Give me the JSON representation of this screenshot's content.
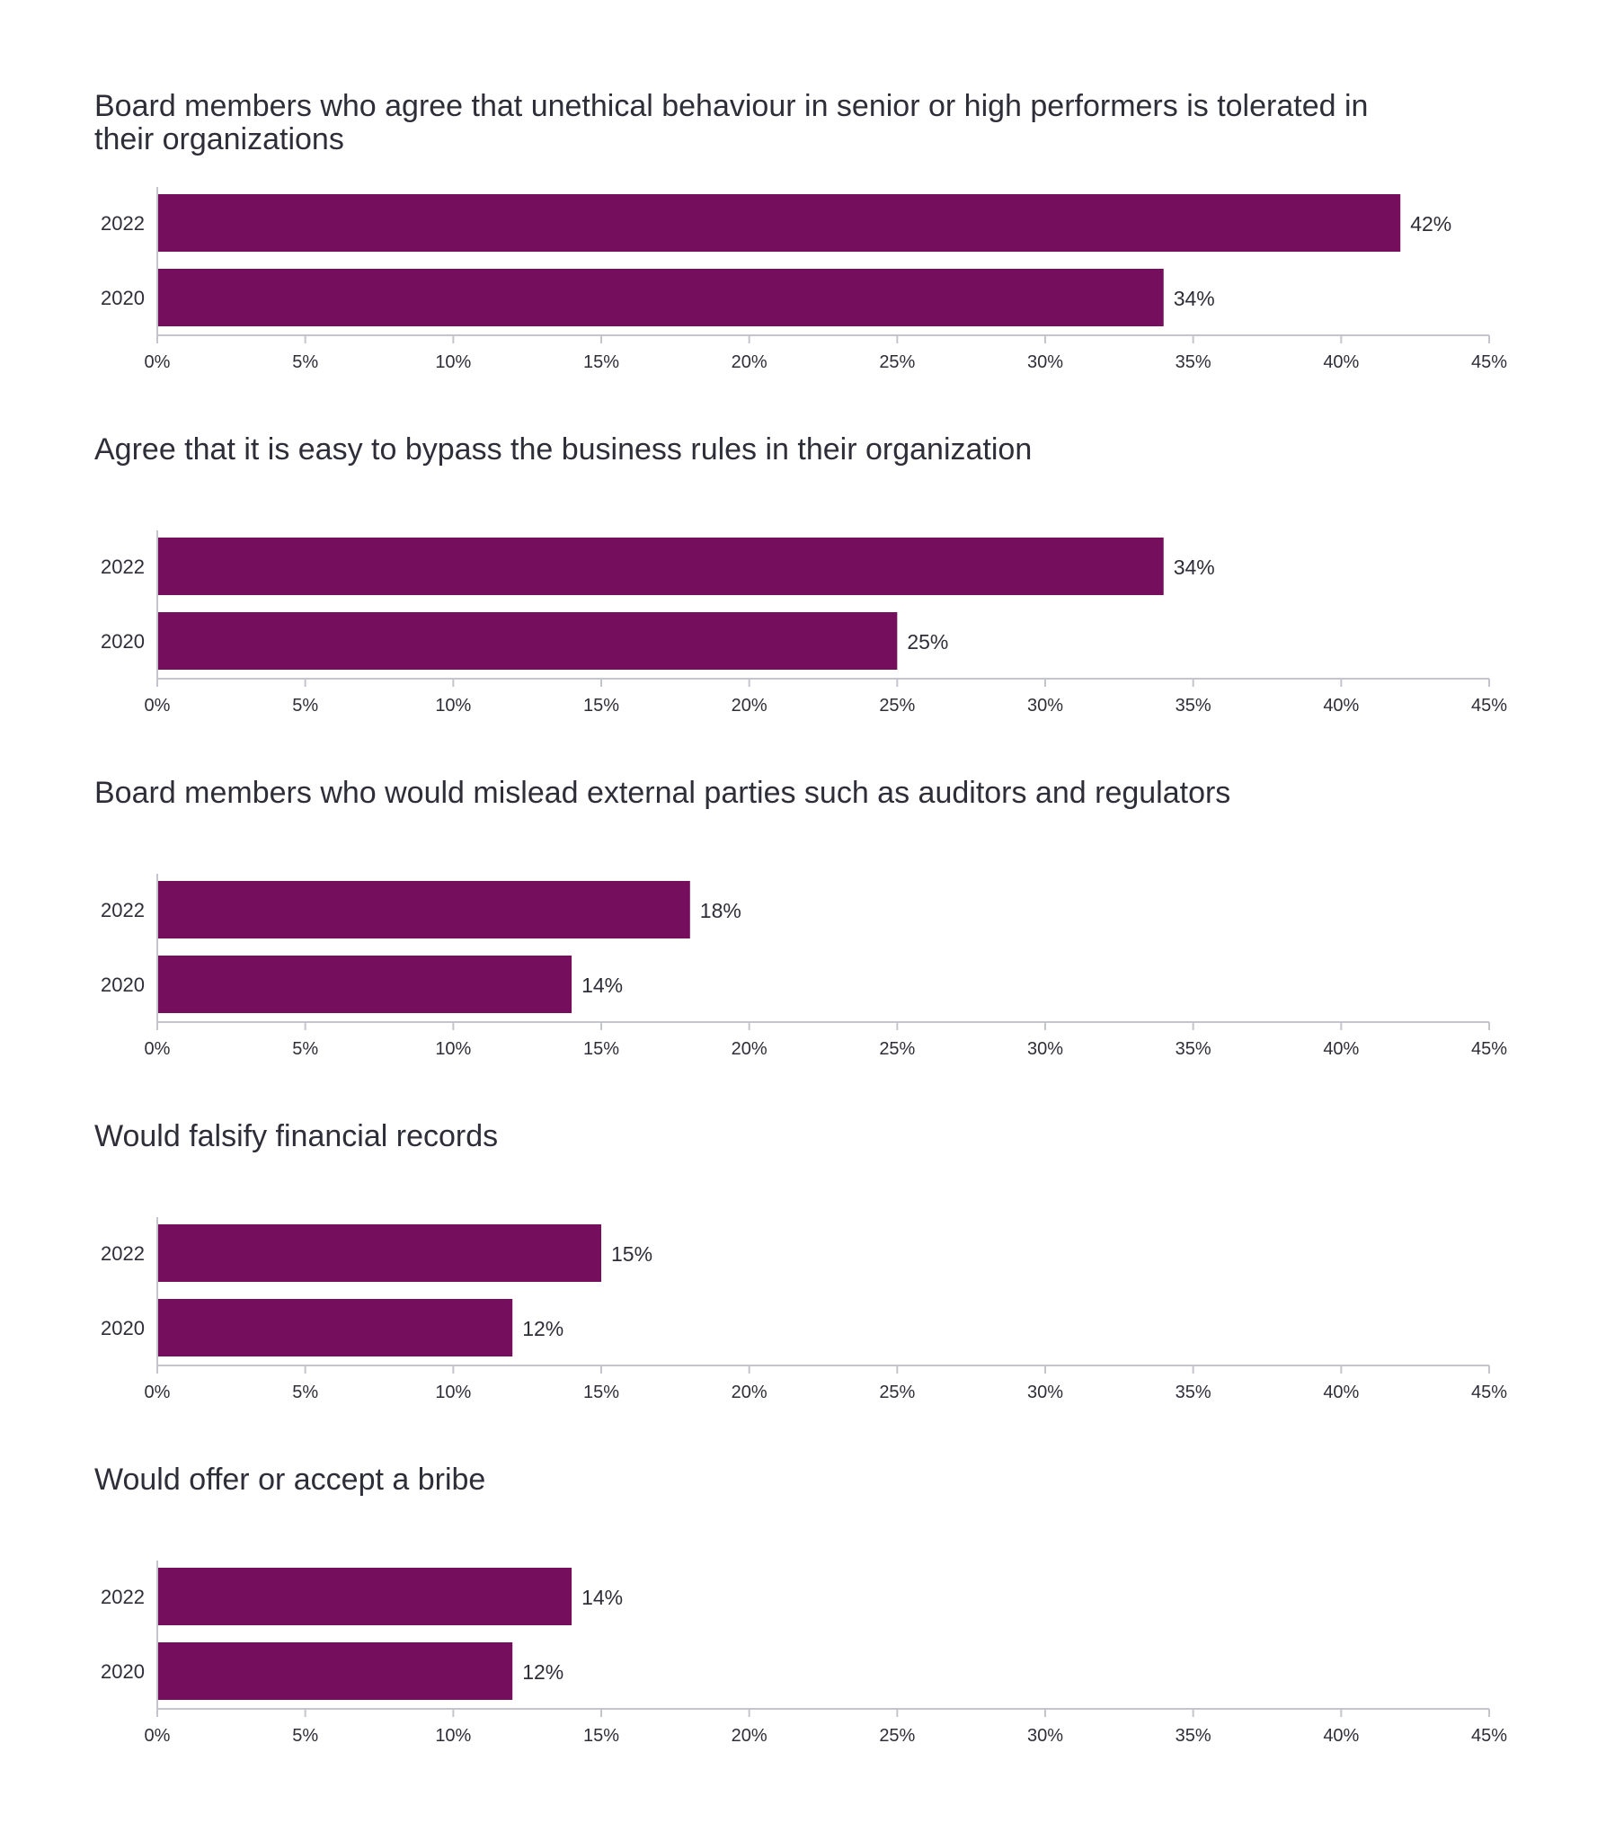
{
  "colors": {
    "bar": "#750e5c",
    "axis": "#c4c4cd",
    "text": "#2e2e38"
  },
  "chart_data": [
    {
      "type": "bar",
      "orientation": "horizontal",
      "title": "Board members who agree that unethical behaviour in senior or high performers is tolerated in their organizations",
      "categories": [
        "2022",
        "2020"
      ],
      "values": [
        42,
        34
      ],
      "value_labels": [
        "42%",
        "34%"
      ],
      "xlim": [
        0,
        45
      ],
      "xticks": [
        "0%",
        "5%",
        "10%",
        "15%",
        "20%",
        "25%",
        "30%",
        "35%",
        "40%",
        "45%"
      ],
      "xlabel": "",
      "ylabel": "",
      "grid": false
    },
    {
      "type": "bar",
      "orientation": "horizontal",
      "title": "Agree that it is easy to bypass the business rules in their organization",
      "categories": [
        "2022",
        "2020"
      ],
      "values": [
        34,
        25
      ],
      "value_labels": [
        "34%",
        "25%"
      ],
      "xlim": [
        0,
        45
      ],
      "xticks": [
        "0%",
        "5%",
        "10%",
        "15%",
        "20%",
        "25%",
        "30%",
        "35%",
        "40%",
        "45%"
      ],
      "xlabel": "",
      "ylabel": "",
      "grid": false
    },
    {
      "type": "bar",
      "orientation": "horizontal",
      "title": "Board members who would mislead external parties such as auditors and regulators",
      "categories": [
        "2022",
        "2020"
      ],
      "values": [
        18,
        14
      ],
      "value_labels": [
        "18%",
        "14%"
      ],
      "xlim": [
        0,
        45
      ],
      "xticks": [
        "0%",
        "5%",
        "10%",
        "15%",
        "20%",
        "25%",
        "30%",
        "35%",
        "40%",
        "45%"
      ],
      "xlabel": "",
      "ylabel": "",
      "grid": false
    },
    {
      "type": "bar",
      "orientation": "horizontal",
      "title": "Would falsify financial records",
      "categories": [
        "2022",
        "2020"
      ],
      "values": [
        15,
        12
      ],
      "value_labels": [
        "15%",
        "12%"
      ],
      "xlim": [
        0,
        45
      ],
      "xticks": [
        "0%",
        "5%",
        "10%",
        "15%",
        "20%",
        "25%",
        "30%",
        "35%",
        "40%",
        "45%"
      ],
      "xlabel": "",
      "ylabel": "",
      "grid": false
    },
    {
      "type": "bar",
      "orientation": "horizontal",
      "title": "Would offer or accept a bribe",
      "categories": [
        "2022",
        "2020"
      ],
      "values": [
        14,
        12
      ],
      "value_labels": [
        "14%",
        "12%"
      ],
      "xlim": [
        0,
        45
      ],
      "xticks": [
        "0%",
        "5%",
        "10%",
        "15%",
        "20%",
        "25%",
        "30%",
        "35%",
        "40%",
        "45%"
      ],
      "xlabel": "",
      "ylabel": "",
      "grid": false
    }
  ]
}
